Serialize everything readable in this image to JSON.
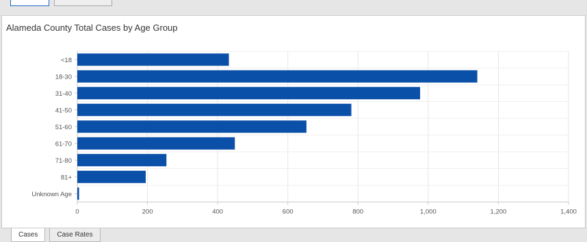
{
  "tabs_bottom": [
    {
      "label": "Cases",
      "active": true
    },
    {
      "label": "Case Rates",
      "active": false
    }
  ],
  "colors": {
    "bar": "#0a4fa8",
    "gridline": "#e6e6e6",
    "axis": "#c8c8c8",
    "active_tab_border": "#1f66c6"
  },
  "chart_data": {
    "type": "bar",
    "orientation": "horizontal",
    "title": "Alameda County Total Cases by Age Group",
    "xlabel": "",
    "ylabel": "",
    "categories": [
      "<18",
      "18-30",
      "31-40",
      "41-50",
      "51-60",
      "61-70",
      "71-80",
      "81+",
      "Unknown Age"
    ],
    "values": [
      432,
      1140,
      977,
      781,
      653,
      449,
      254,
      195,
      5
    ],
    "xlim": [
      0,
      1400
    ],
    "xticks": [
      0,
      200,
      400,
      600,
      800,
      1000,
      1200,
      1400
    ],
    "xtick_labels": [
      "0",
      "200",
      "400",
      "600",
      "800",
      "1,000",
      "1,200",
      "1,400"
    ],
    "grid": true,
    "legend": "none"
  }
}
